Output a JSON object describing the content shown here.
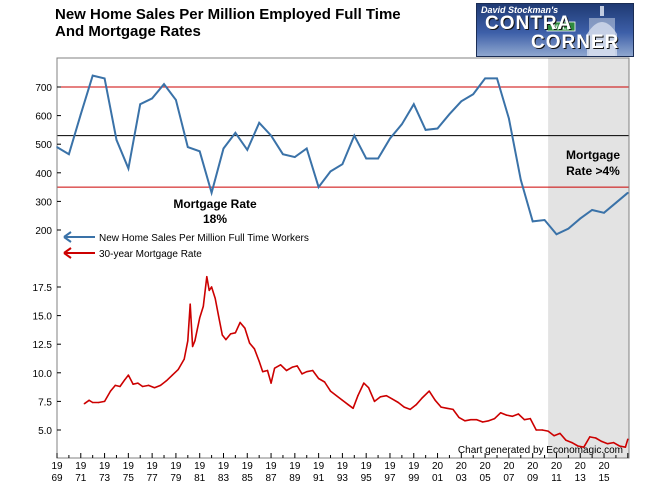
{
  "header": {
    "title_line1": "New Home Sales Per Million Employed Full Time",
    "title_line2": "And Mortgage Rates"
  },
  "logo": {
    "line1": "David Stockman's",
    "line2": "CONTRA",
    "line3": "CORNER",
    "street_sign": "WALL"
  },
  "colors": {
    "sales_line": "#3a72a8",
    "mortgage_line": "#cc0000",
    "reference_red": "#cc0000",
    "shade": "#e3e3e3",
    "frame": "#808080"
  },
  "chart_data": [
    {
      "type": "line",
      "series": [
        {
          "name": "New Home Sales Per Million Full Time Workers",
          "x": [
            1969,
            1970,
            1971,
            1972,
            1973,
            1974,
            1975,
            1976,
            1977,
            1978,
            1979,
            1980,
            1981,
            1982,
            1983,
            1984,
            1985,
            1986,
            1987,
            1988,
            1989,
            1990,
            1991,
            1992,
            1993,
            1994,
            1995,
            1996,
            1997,
            1998,
            1999,
            2000,
            2001,
            2002,
            2003,
            2004,
            2005,
            2006,
            2007,
            2008,
            2009,
            2010,
            2011,
            2012,
            2013,
            2014,
            2015,
            2016,
            2017
          ],
          "values": [
            490,
            465,
            605,
            740,
            730,
            515,
            415,
            640,
            660,
            710,
            655,
            490,
            475,
            330,
            485,
            540,
            480,
            575,
            530,
            465,
            455,
            485,
            350,
            405,
            430,
            530,
            450,
            450,
            520,
            570,
            640,
            550,
            555,
            605,
            650,
            675,
            730,
            730,
            590,
            375,
            230,
            235,
            185,
            205,
            240,
            270,
            260,
            295,
            330
          ]
        }
      ],
      "ylim": [
        150,
        800
      ],
      "yticks": [
        200,
        300,
        400,
        500,
        600,
        700
      ],
      "ytick_labels": [
        "200",
        "300",
        "400",
        "500",
        "600",
        "700"
      ],
      "reference_lines": [
        {
          "value": 700,
          "color": "#cc0000"
        },
        {
          "value": 530,
          "color": "#000000"
        },
        {
          "value": 350,
          "color": "#cc0000"
        }
      ],
      "shaded_from": 2010.3,
      "annotations": [
        {
          "text_line1": "Mortgage Rate",
          "text_line2": "18%"
        },
        {
          "text_line1": "Mortgage",
          "text_line2": "Rate >4%"
        }
      ],
      "legend": {
        "placement": "middle-left",
        "entries": [
          {
            "label": "New Home Sales Per Million Full Time Workers",
            "color": "#3a72a8"
          },
          {
            "label": "30-year Mortgage Rate",
            "color": "#cc0000"
          }
        ]
      }
    },
    {
      "type": "line",
      "series": [
        {
          "name": "30-year Mortgage Rate",
          "x": [
            1971.3,
            1971.7,
            1972.0,
            1972.5,
            1973.0,
            1973.5,
            1973.9,
            1974.3,
            1974.7,
            1975.0,
            1975.4,
            1975.8,
            1976.2,
            1976.7,
            1977.2,
            1977.7,
            1978.2,
            1978.7,
            1979.2,
            1979.7,
            1980.0,
            1980.2,
            1980.4,
            1980.6,
            1980.8,
            1981.0,
            1981.3,
            1981.6,
            1981.8,
            1982.0,
            1982.3,
            1982.6,
            1982.9,
            1983.2,
            1983.6,
            1984.0,
            1984.4,
            1984.8,
            1985.2,
            1985.6,
            1986.0,
            1986.3,
            1986.7,
            1987.0,
            1987.3,
            1987.8,
            1988.3,
            1988.8,
            1989.2,
            1989.6,
            1990.0,
            1990.5,
            1991.0,
            1991.5,
            1992.0,
            1992.5,
            1993.0,
            1993.5,
            1993.9,
            1994.3,
            1994.8,
            1995.2,
            1995.7,
            1996.2,
            1996.7,
            1997.2,
            1997.7,
            1998.2,
            1998.7,
            1999.2,
            1999.7,
            2000.3,
            2000.8,
            2001.3,
            2001.8,
            2002.3,
            2002.8,
            2003.3,
            2003.8,
            2004.3,
            2004.8,
            2005.3,
            2005.8,
            2006.3,
            2006.8,
            2007.3,
            2007.8,
            2008.3,
            2008.8,
            2009.3,
            2009.8,
            2010.3,
            2010.8,
            2011.3,
            2011.8,
            2012.3,
            2012.8,
            2013.3,
            2013.8,
            2014.3,
            2014.8,
            2015.3,
            2015.8,
            2016.3,
            2016.8,
            2017.0
          ],
          "values": [
            7.3,
            7.6,
            7.4,
            7.4,
            7.5,
            8.4,
            8.9,
            8.8,
            9.4,
            9.8,
            9.0,
            9.1,
            8.8,
            8.9,
            8.7,
            8.9,
            9.3,
            9.8,
            10.3,
            11.2,
            12.8,
            16.0,
            12.3,
            12.8,
            13.8,
            14.8,
            15.8,
            18.4,
            17.2,
            17.5,
            16.5,
            14.9,
            13.3,
            12.9,
            13.4,
            13.5,
            14.4,
            13.9,
            12.6,
            12.1,
            11.0,
            10.1,
            10.2,
            9.1,
            10.4,
            10.7,
            10.2,
            10.5,
            10.6,
            9.9,
            10.1,
            10.2,
            9.5,
            9.2,
            8.4,
            8.0,
            7.6,
            7.2,
            6.9,
            8.0,
            9.1,
            8.7,
            7.5,
            7.9,
            8.0,
            7.7,
            7.4,
            7.0,
            6.8,
            7.2,
            7.8,
            8.4,
            7.6,
            7.0,
            6.9,
            6.8,
            6.1,
            5.8,
            5.9,
            5.9,
            5.7,
            5.8,
            6.0,
            6.5,
            6.3,
            6.2,
            6.4,
            5.9,
            6.0,
            5.0,
            5.0,
            4.9,
            4.5,
            4.7,
            4.1,
            3.9,
            3.6,
            3.5,
            4.4,
            4.3,
            4.0,
            3.8,
            3.9,
            3.6,
            3.5,
            4.2
          ]
        }
      ],
      "ylim": [
        2.8,
        19.5
      ],
      "yticks": [
        5.0,
        7.5,
        10.0,
        12.5,
        15.0,
        17.5
      ],
      "ytick_labels": [
        "5.0",
        "7.5",
        "10.0",
        "12.5",
        "15.0",
        "17.5"
      ],
      "x_tick_labels": [
        {
          "year": 1969,
          "top": "19",
          "bottom": "69"
        },
        {
          "year": 1971,
          "top": "19",
          "bottom": "71"
        },
        {
          "year": 1973,
          "top": "19",
          "bottom": "73"
        },
        {
          "year": 1975,
          "top": "19",
          "bottom": "75"
        },
        {
          "year": 1977,
          "top": "19",
          "bottom": "77"
        },
        {
          "year": 1979,
          "top": "19",
          "bottom": "79"
        },
        {
          "year": 1981,
          "top": "19",
          "bottom": "81"
        },
        {
          "year": 1983,
          "top": "19",
          "bottom": "83"
        },
        {
          "year": 1985,
          "top": "19",
          "bottom": "85"
        },
        {
          "year": 1987,
          "top": "19",
          "bottom": "87"
        },
        {
          "year": 1989,
          "top": "19",
          "bottom": "89"
        },
        {
          "year": 1991,
          "top": "19",
          "bottom": "91"
        },
        {
          "year": 1993,
          "top": "19",
          "bottom": "93"
        },
        {
          "year": 1995,
          "top": "19",
          "bottom": "95"
        },
        {
          "year": 1997,
          "top": "19",
          "bottom": "97"
        },
        {
          "year": 1999,
          "top": "19",
          "bottom": "99"
        },
        {
          "year": 2001,
          "top": "20",
          "bottom": "01"
        },
        {
          "year": 2003,
          "top": "20",
          "bottom": "03"
        },
        {
          "year": 2005,
          "top": "20",
          "bottom": "05"
        },
        {
          "year": 2007,
          "top": "20",
          "bottom": "07"
        },
        {
          "year": 2009,
          "top": "20",
          "bottom": "09"
        },
        {
          "year": 2011,
          "top": "20",
          "bottom": "11"
        },
        {
          "year": 2013,
          "top": "20",
          "bottom": "13"
        },
        {
          "year": 2015,
          "top": "20",
          "bottom": "15"
        }
      ],
      "xlim": [
        1969,
        2017.1
      ],
      "shaded_from": 2010.3,
      "credit": "Chart generated by Economagic.com"
    }
  ]
}
